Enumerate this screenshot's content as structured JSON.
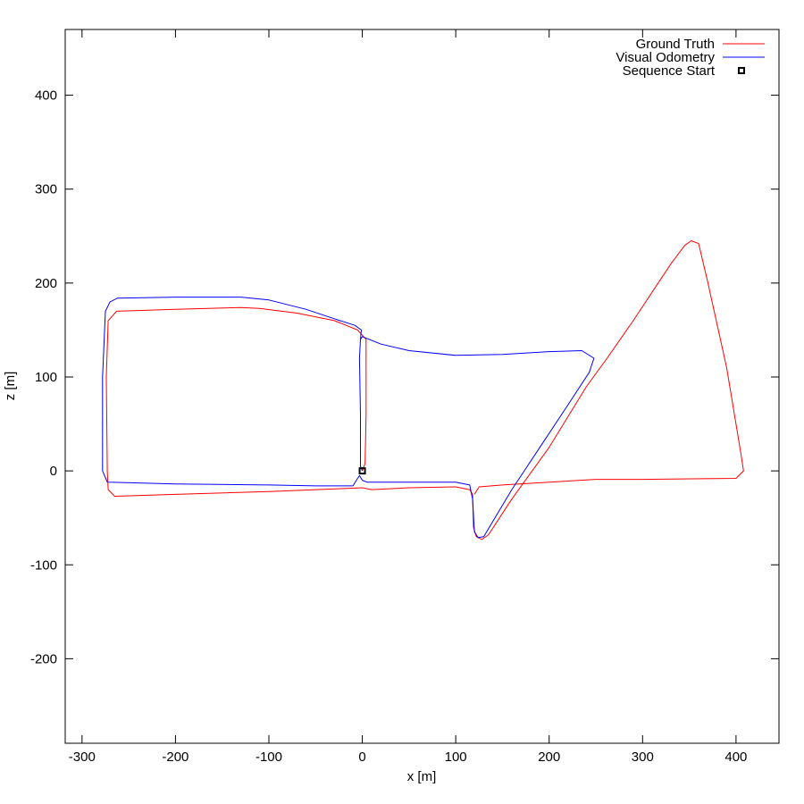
{
  "chart_data": {
    "type": "line",
    "title": "",
    "xlabel": "x [m]",
    "ylabel": "z [m]",
    "xlim": [
      -318,
      446
    ],
    "ylim": [
      -290,
      470
    ],
    "xticks": [
      -300,
      -200,
      -100,
      0,
      100,
      200,
      300,
      400
    ],
    "yticks": [
      -200,
      -100,
      0,
      100,
      200,
      300,
      400
    ],
    "grid": false,
    "legend_position": "top-right",
    "series": [
      {
        "name": "Ground Truth",
        "color": "#ff0000",
        "points": [
          [
            0,
            0
          ],
          [
            3,
            8
          ],
          [
            4,
            60
          ],
          [
            4,
            120
          ],
          [
            4,
            140
          ],
          [
            -5,
            150
          ],
          [
            -30,
            160
          ],
          [
            -70,
            168
          ],
          [
            -110,
            173
          ],
          [
            -130,
            174
          ],
          [
            -200,
            172
          ],
          [
            -263,
            170
          ],
          [
            -272,
            160
          ],
          [
            -274,
            100
          ],
          [
            -273,
            0
          ],
          [
            -272,
            -20
          ],
          [
            -265,
            -27
          ],
          [
            -200,
            -25
          ],
          [
            -100,
            -22
          ],
          [
            0,
            -18
          ],
          [
            10,
            -20
          ],
          [
            50,
            -18
          ],
          [
            100,
            -17
          ],
          [
            115,
            -20
          ],
          [
            118,
            -25
          ],
          [
            119,
            -60
          ],
          [
            122,
            -70
          ],
          [
            128,
            -73
          ],
          [
            135,
            -68
          ],
          [
            160,
            -30
          ],
          [
            200,
            25
          ],
          [
            240,
            90
          ],
          [
            262,
            120
          ],
          [
            290,
            160
          ],
          [
            330,
            220
          ],
          [
            345,
            240
          ],
          [
            352,
            245
          ],
          [
            360,
            242
          ],
          [
            370,
            200
          ],
          [
            390,
            110
          ],
          [
            405,
            20
          ],
          [
            408,
            0
          ],
          [
            400,
            -8
          ],
          [
            300,
            -9
          ],
          [
            250,
            -9
          ],
          [
            150,
            -15
          ],
          [
            125,
            -17
          ],
          [
            120,
            -25
          ]
        ]
      },
      {
        "name": "Visual Odometry",
        "color": "#0000ff",
        "points": [
          [
            0,
            0
          ],
          [
            -2,
            5
          ],
          [
            -2,
            60
          ],
          [
            -3,
            120
          ],
          [
            -2,
            140
          ],
          [
            0,
            143
          ],
          [
            20,
            135
          ],
          [
            50,
            128
          ],
          [
            100,
            123
          ],
          [
            150,
            124
          ],
          [
            200,
            127
          ],
          [
            235,
            128
          ],
          [
            248,
            120
          ],
          [
            243,
            105
          ],
          [
            220,
            70
          ],
          [
            190,
            25
          ],
          [
            160,
            -20
          ],
          [
            145,
            -45
          ],
          [
            130,
            -70
          ],
          [
            124,
            -71
          ],
          [
            120,
            -65
          ],
          [
            118,
            -30
          ],
          [
            115,
            -15
          ],
          [
            100,
            -12
          ],
          [
            50,
            -12
          ],
          [
            5,
            -12
          ],
          [
            0,
            -10
          ],
          [
            -3,
            -5
          ],
          [
            -5,
            -8
          ],
          [
            -10,
            -16
          ],
          [
            -50,
            -16
          ],
          [
            -100,
            -15
          ],
          [
            -200,
            -14
          ],
          [
            -273,
            -12
          ],
          [
            -278,
            0
          ],
          [
            -278,
            100
          ],
          [
            -275,
            170
          ],
          [
            -270,
            180
          ],
          [
            -262,
            184
          ],
          [
            -200,
            185
          ],
          [
            -130,
            185
          ],
          [
            -100,
            182
          ],
          [
            -60,
            172
          ],
          [
            -30,
            162
          ],
          [
            -8,
            155
          ],
          [
            -1,
            150
          ],
          [
            -2,
            140
          ]
        ]
      }
    ],
    "markers": [
      {
        "name": "Sequence Start",
        "x": 0,
        "y": 0,
        "shape": "square",
        "color": "#000000"
      }
    ]
  }
}
